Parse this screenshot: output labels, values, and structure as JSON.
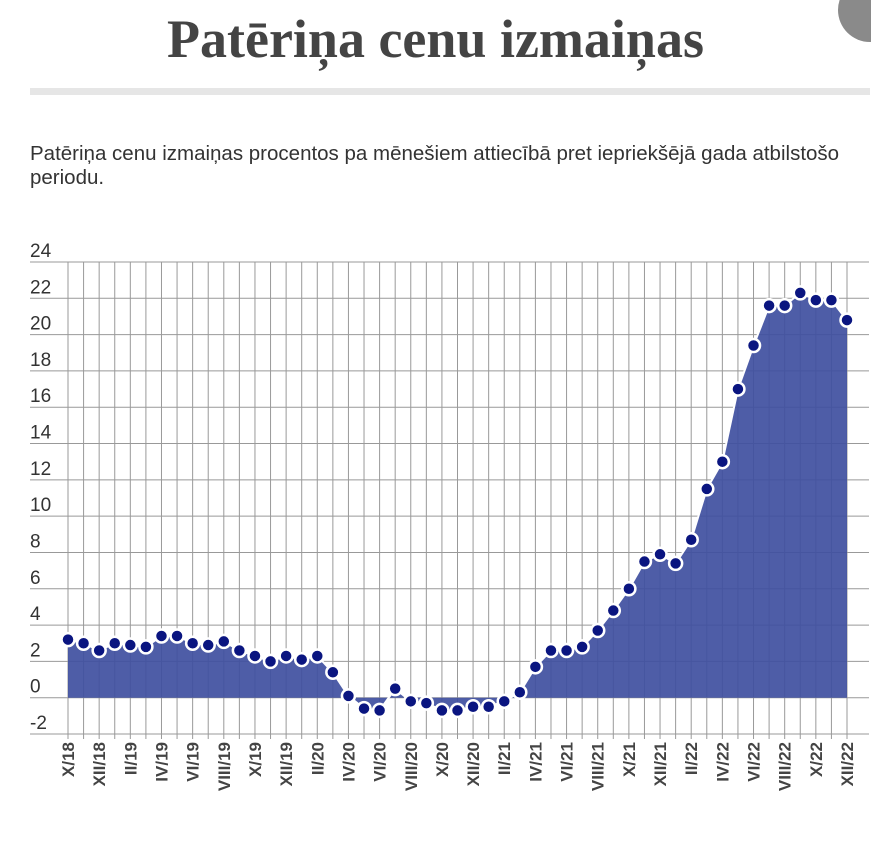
{
  "header": {
    "title": "Patēriņa cenu izmaiņas"
  },
  "chart_data": {
    "type": "area",
    "title": "Patēriņa cenu izmaiņas procentos pa mēnešiem attiecībā pret iepriekšējā gada atbilstošo periodu.",
    "xlabel": "",
    "ylabel": "",
    "ylim": [
      -2,
      24
    ],
    "yticks": [
      "24",
      "22",
      "20",
      "18",
      "16",
      "14",
      "12",
      "10",
      "8",
      "6",
      "4",
      "2",
      "0",
      "-2"
    ],
    "ytick_values": [
      24,
      22,
      20,
      18,
      16,
      14,
      12,
      10,
      8,
      6,
      4,
      2,
      0,
      -2
    ],
    "grid": true,
    "colors": {
      "fill": "#3f4fa0",
      "marker": "#0a1580",
      "marker_edge": "#ffffff",
      "grid": "#999999",
      "text": "#333333"
    },
    "x_tick_labels": [
      "X/18",
      "XII/18",
      "II/19",
      "IV/19",
      "VI/19",
      "VIII/19",
      "X/19",
      "XII/19",
      "II/20",
      "IV/20",
      "VI/20",
      "VIII/20",
      "X/20",
      "XII/20",
      "II/21",
      "IV/21",
      "VI/21",
      "VIII/21",
      "X/21",
      "XII/21",
      "II/22",
      "IV/22",
      "VI/22",
      "VIII/22",
      "X/22",
      "XII/22"
    ],
    "series": [
      {
        "name": "Patēriņa cenu izmaiņas, %",
        "values": [
          3.2,
          3.0,
          2.6,
          3.0,
          2.9,
          2.8,
          3.4,
          3.4,
          3.0,
          2.9,
          3.1,
          2.6,
          2.3,
          2.0,
          2.3,
          2.1,
          2.3,
          1.4,
          0.1,
          -0.6,
          -0.7,
          0.5,
          -0.2,
          -0.3,
          -0.7,
          -0.7,
          -0.5,
          -0.5,
          -0.2,
          0.3,
          1.7,
          2.6,
          2.6,
          2.8,
          3.7,
          4.8,
          6.0,
          7.5,
          7.9,
          7.4,
          8.7,
          11.5,
          13.0,
          17.0,
          19.4,
          21.6,
          21.6,
          22.3,
          21.9,
          21.9,
          20.8
        ]
      }
    ]
  }
}
